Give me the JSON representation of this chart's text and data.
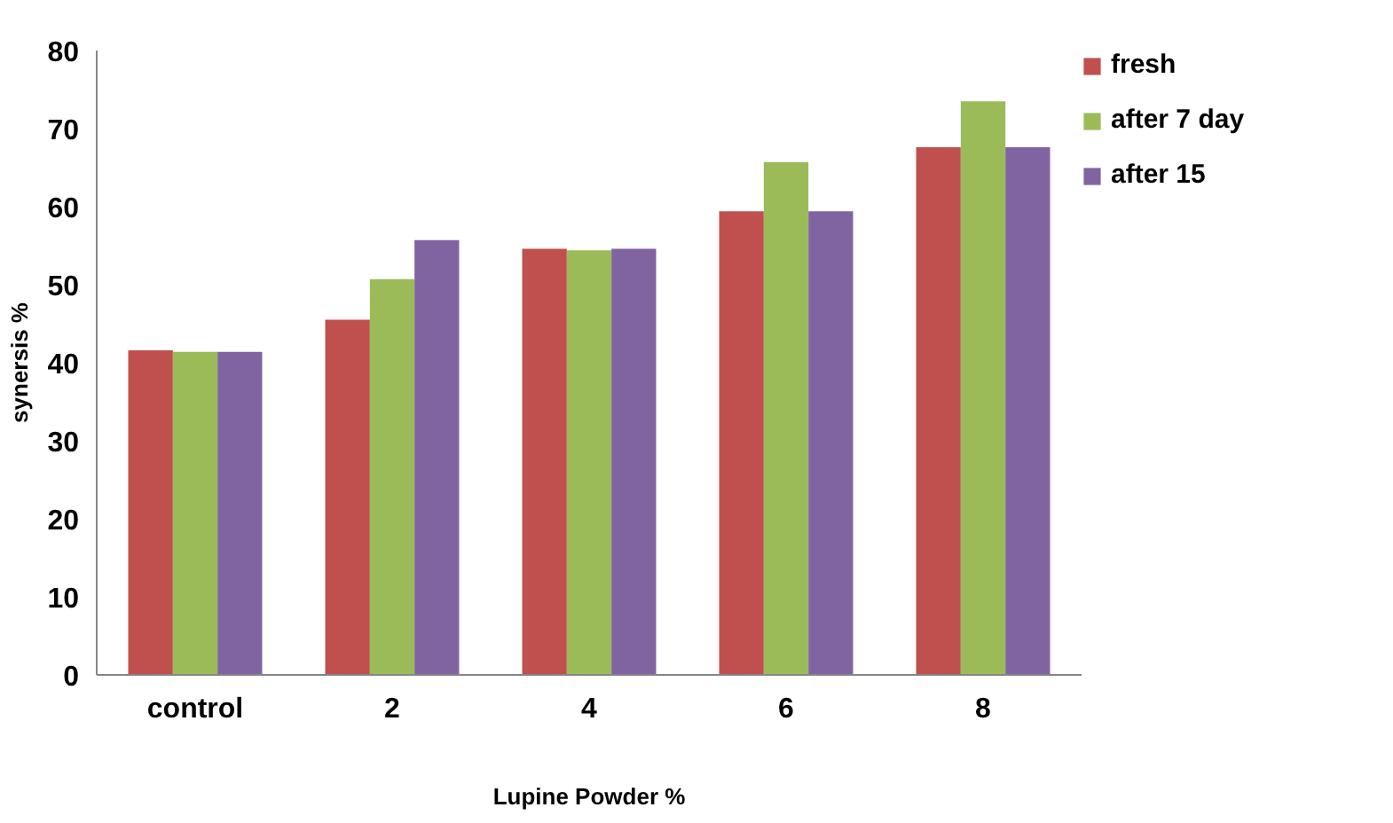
{
  "chart_data": {
    "type": "bar",
    "xlabel": "Lupine Powder %",
    "ylabel": "synersis %",
    "categories": [
      "control",
      "2",
      "4",
      "6",
      "8"
    ],
    "series": [
      {
        "name": "fresh",
        "color": "#c0504d",
        "values": [
          41.6,
          45.5,
          54.6,
          59.4,
          67.6
        ]
      },
      {
        "name": "after 7 day",
        "color": "#9bbb59",
        "values": [
          41.4,
          50.7,
          54.4,
          65.7,
          73.5
        ]
      },
      {
        "name": "after 15",
        "color": "#8064a2",
        "values": [
          41.4,
          55.7,
          54.6,
          59.4,
          67.6
        ]
      }
    ],
    "ylim": [
      0,
      80
    ],
    "yticks": [
      0,
      10,
      20,
      30,
      40,
      50,
      60,
      70,
      80
    ],
    "grid": false,
    "legend": "top right"
  }
}
